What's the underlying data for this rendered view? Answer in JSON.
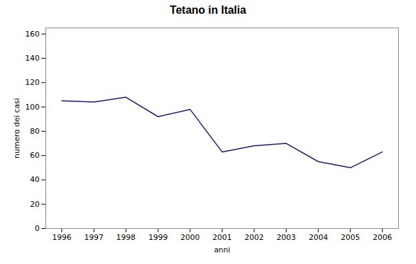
{
  "chart_data": {
    "type": "line",
    "title": "Tetano in Italia",
    "xlabel": "anni",
    "ylabel": "numero dei casi",
    "x": [
      1996,
      1997,
      1998,
      1999,
      2000,
      2001,
      2002,
      2003,
      2004,
      2005,
      2006
    ],
    "values": [
      105,
      104,
      108,
      92,
      98,
      63,
      68,
      70,
      55,
      50,
      63
    ],
    "color": "#1a1a6e",
    "xlim": [
      1995.5,
      2006.5
    ],
    "xticks": [
      1996,
      1997,
      1998,
      1999,
      2000,
      2001,
      2002,
      2003,
      2004,
      2005,
      2006
    ],
    "ylim": [
      0,
      165
    ],
    "yticks": [
      0,
      20,
      40,
      60,
      80,
      100,
      120,
      140,
      160
    ],
    "grid": false
  }
}
